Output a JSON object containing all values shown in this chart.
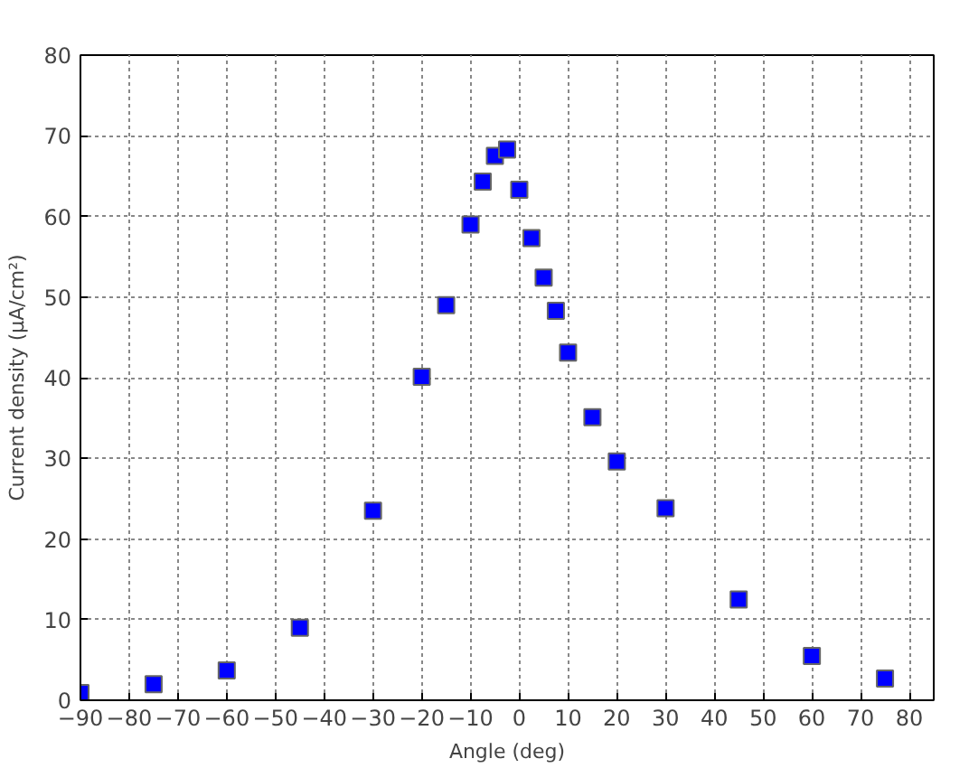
{
  "chart_data": {
    "type": "scatter",
    "xlabel": "Angle (deg)",
    "ylabel": "Current density (μA/cm²)",
    "x": [
      -90,
      -75,
      -60,
      -45,
      -30,
      -20,
      -15,
      -10,
      -7.5,
      -5,
      -2.5,
      0,
      2.5,
      5,
      7.5,
      10,
      15,
      20,
      30,
      45,
      60,
      75
    ],
    "series": [
      {
        "color": "#0000ff",
        "values": [
          0.9,
          2.0,
          3.7,
          9.0,
          23.5,
          40.1,
          49.0,
          59.0,
          64.3,
          67.5,
          68.3,
          63.3,
          57.3,
          52.4,
          48.3,
          43.1,
          35.1,
          29.6,
          23.8,
          12.5,
          5.5,
          2.7
        ]
      }
    ],
    "xlim": [
      -90,
      85
    ],
    "ylim": [
      0,
      80
    ],
    "xticks": [
      -90,
      -80,
      -70,
      -60,
      -50,
      -40,
      -30,
      -20,
      -10,
      0,
      10,
      20,
      30,
      40,
      50,
      60,
      70,
      80
    ],
    "yticks": [
      0,
      10,
      20,
      30,
      40,
      50,
      60,
      70,
      80
    ],
    "grid": true,
    "marker": "square"
  }
}
